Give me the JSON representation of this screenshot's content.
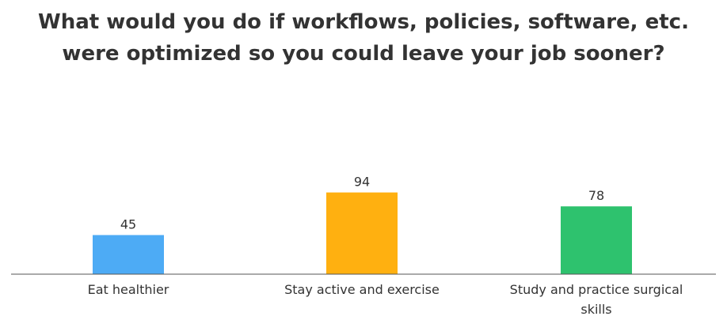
{
  "chart_data": {
    "type": "bar",
    "title": "What would you do if workflows, policies, software, etc. were optimized so you could leave your job sooner?",
    "xlabel": "",
    "ylabel": "",
    "categories": [
      "Eat healthier",
      "Stay active and exercise",
      "Study and practice surgical skills"
    ],
    "values": [
      45,
      94,
      78
    ],
    "colors": [
      "#4dabf5",
      "#ffb010",
      "#2ec26e"
    ],
    "ylim": [
      0,
      100
    ],
    "grid": false,
    "legend": "none",
    "data_labels": true
  }
}
